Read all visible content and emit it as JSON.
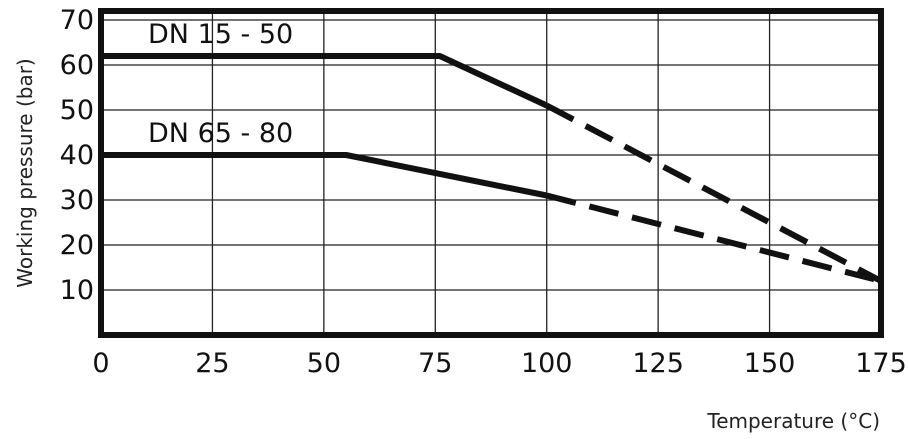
{
  "chart_data": {
    "type": "line",
    "xlabel": "Temperature (°C)",
    "ylabel": "Working pressure (bar)",
    "xlim": [
      0,
      175
    ],
    "ylim": [
      0,
      72
    ],
    "xticks": [
      0,
      25,
      50,
      75,
      100,
      125,
      150,
      175
    ],
    "yticks": [
      10,
      20,
      30,
      40,
      50,
      60,
      70
    ],
    "grid": true,
    "series": [
      {
        "name": "DN 15 - 50",
        "x": [
          0,
          76,
          100,
          175
        ],
        "y": [
          62,
          62,
          51,
          12
        ],
        "dashed_from_x": 100
      },
      {
        "name": "DN 65 - 80",
        "x": [
          0,
          55,
          100,
          175
        ],
        "y": [
          40,
          40,
          31,
          12
        ],
        "dashed_from_x": 100
      }
    ]
  }
}
